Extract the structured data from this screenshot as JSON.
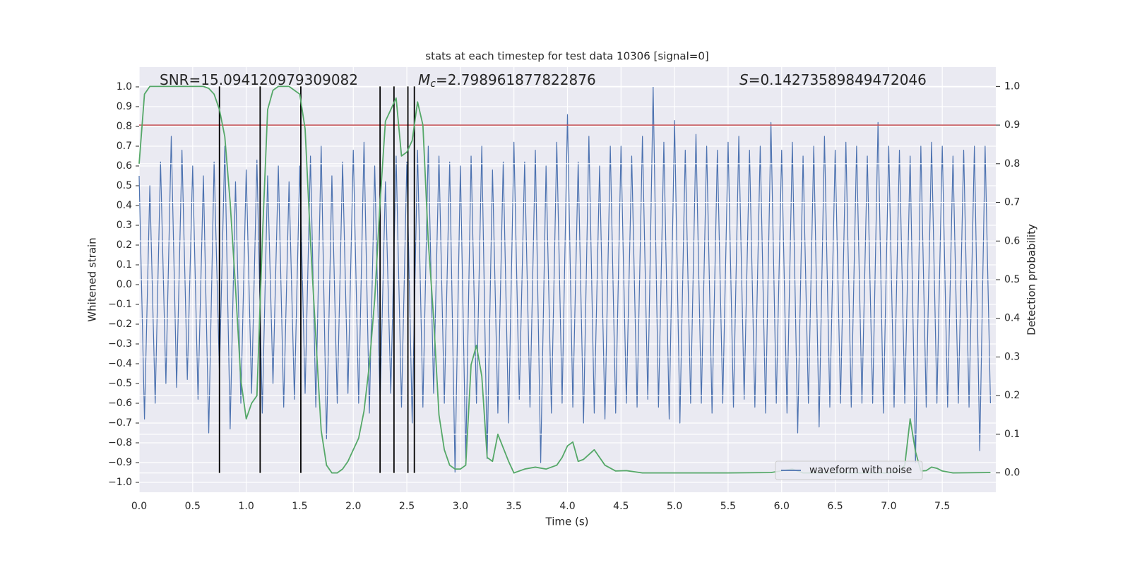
{
  "chart_data": {
    "type": "line",
    "title": "stats at each timestep for test data 10306 [signal=0]",
    "xlabel": "Time (s)",
    "ylabel": "Whitened strain",
    "y2label": "Detection probability",
    "xlim": [
      0,
      8
    ],
    "xticks": [
      {
        "value": 0,
        "label": "0.0"
      },
      0.5,
      {
        "value": 1,
        "label": "1.0"
      },
      1.5,
      {
        "value": 2,
        "label": "2.0"
      },
      2.5,
      {
        "value": 3,
        "label": "3.0"
      },
      3.5,
      {
        "value": 4,
        "label": "4.0"
      },
      4.5,
      {
        "value": 5,
        "label": "5.0"
      },
      5.5,
      {
        "value": 6,
        "label": "6.0"
      },
      6.5,
      {
        "value": 7,
        "label": "7.0"
      },
      7.5
    ],
    "ylim": [
      -1.05,
      1.1
    ],
    "yticks": [
      {
        "value": -1,
        "label": "−1.0"
      },
      {
        "value": -0.9,
        "label": "−0.9"
      },
      {
        "value": -0.8,
        "label": "−0.8"
      },
      {
        "value": -0.7,
        "label": "−0.7"
      },
      {
        "value": -0.6,
        "label": "−0.6"
      },
      {
        "value": -0.5,
        "label": "−0.5"
      },
      {
        "value": -0.4,
        "label": "−0.4"
      },
      {
        "value": -0.3,
        "label": "−0.3"
      },
      {
        "value": -0.2,
        "label": "−0.2"
      },
      {
        "value": -0.1,
        "label": "−0.1"
      },
      {
        "value": 0,
        "label": "0.0"
      },
      0.1,
      0.2,
      0.3,
      0.4,
      0.5,
      0.6,
      0.7,
      0.8,
      0.9,
      {
        "value": 1,
        "label": "1.0"
      }
    ],
    "y2lim": [
      -0.05,
      1.05
    ],
    "y2ticks": [
      {
        "value": 0,
        "label": "0.0"
      },
      0.1,
      0.2,
      0.3,
      0.4,
      0.5,
      0.6,
      0.7,
      0.8,
      0.9,
      {
        "value": 1,
        "label": "1.0"
      }
    ],
    "grid": true,
    "legend_loc": "lower right",
    "annotations": [
      {
        "text": "SNR=15.094120979309082"
      },
      {
        "symbol": "M",
        "subscript": "c",
        "text": "=2.798961877822876"
      },
      {
        "symbol": "S",
        "text": "=0.14273589849472046"
      }
    ],
    "series": [
      {
        "name": "waveform with noise",
        "color": "#4c72b0",
        "x": [
          0,
          0.05,
          0.1,
          0.15,
          0.2,
          0.25,
          0.3,
          0.35,
          0.4,
          0.45,
          0.5,
          0.55,
          0.6,
          0.65,
          0.7,
          0.75,
          0.8,
          0.85,
          0.9,
          0.95,
          1,
          1.05,
          1.1,
          1.15,
          1.2,
          1.25,
          1.3,
          1.35,
          1.4,
          1.45,
          1.5,
          1.55,
          1.6,
          1.65,
          1.7,
          1.75,
          1.8,
          1.85,
          1.9,
          1.95,
          2,
          2.05,
          2.1,
          2.15,
          2.2,
          2.25,
          2.3,
          2.35,
          2.4,
          2.45,
          2.5,
          2.55,
          2.6,
          2.65,
          2.7,
          2.75,
          2.8,
          2.85,
          2.9,
          2.95,
          3,
          3.05,
          3.1,
          3.15,
          3.2,
          3.25,
          3.3,
          3.35,
          3.4,
          3.45,
          3.5,
          3.55,
          3.6,
          3.65,
          3.7,
          3.75,
          3.8,
          3.85,
          3.9,
          3.95,
          4,
          4.05,
          4.1,
          4.15,
          4.2,
          4.25,
          4.3,
          4.35,
          4.4,
          4.45,
          4.5,
          4.55,
          4.6,
          4.65,
          4.7,
          4.75,
          4.8,
          4.85,
          4.9,
          4.95,
          5,
          5.05,
          5.1,
          5.15,
          5.2,
          5.25,
          5.3,
          5.35,
          5.4,
          5.45,
          5.5,
          5.55,
          5.6,
          5.65,
          5.7,
          5.75,
          5.8,
          5.85,
          5.9,
          5.95,
          6,
          6.05,
          6.1,
          6.15,
          6.2,
          6.25,
          6.3,
          6.35,
          6.4,
          6.45,
          6.5,
          6.55,
          6.6,
          6.65,
          6.7,
          6.75,
          6.8,
          6.85,
          6.9,
          6.95,
          7,
          7.05,
          7.1,
          7.15,
          7.2,
          7.25,
          7.3,
          7.35,
          7.4,
          7.45,
          7.5,
          7.55,
          7.6,
          7.65,
          7.7,
          7.75,
          7.8,
          7.85,
          7.9,
          7.95
        ],
        "values": [
          0.55,
          -0.68,
          0.5,
          -0.6,
          0.62,
          -0.5,
          0.75,
          -0.52,
          0.68,
          -0.48,
          0.6,
          -0.58,
          0.55,
          -0.75,
          0.62,
          -0.45,
          0.7,
          -0.73,
          0.52,
          -0.6,
          0.58,
          -0.55,
          0.63,
          -0.65,
          0.55,
          -0.5,
          0.6,
          -0.62,
          0.52,
          -0.58,
          0.6,
          -0.55,
          0.65,
          -0.62,
          0.7,
          -0.78,
          0.55,
          -0.6,
          0.62,
          -0.55,
          0.68,
          -0.6,
          0.72,
          -0.65,
          0.6,
          -0.6,
          0.52,
          -0.55,
          0.65,
          -0.62,
          0.62,
          -0.7,
          0.68,
          -0.62,
          0.7,
          -0.55,
          0.65,
          -0.6,
          0.62,
          -0.95,
          0.6,
          -0.88,
          0.65,
          -0.6,
          0.7,
          -0.88,
          0.58,
          -0.65,
          0.62,
          -0.7,
          0.72,
          -0.58,
          0.62,
          -0.62,
          0.68,
          -0.9,
          0.6,
          -0.65,
          0.72,
          -0.6,
          0.86,
          -0.62,
          0.62,
          -0.7,
          0.75,
          -0.65,
          0.6,
          -0.68,
          0.7,
          -0.65,
          0.7,
          -0.6,
          0.65,
          -0.62,
          0.75,
          -0.58,
          1.0,
          -0.62,
          0.72,
          -0.68,
          0.83,
          -0.7,
          0.68,
          -0.6,
          0.76,
          -0.6,
          0.7,
          -0.65,
          0.68,
          -0.6,
          0.72,
          -0.62,
          0.75,
          -0.58,
          0.68,
          -0.62,
          0.7,
          -0.65,
          0.82,
          -0.6,
          0.68,
          -0.65,
          0.72,
          -0.75,
          0.65,
          -0.6,
          0.7,
          -0.72,
          0.75,
          -0.62,
          0.68,
          -0.6,
          0.72,
          -0.62,
          0.7,
          -0.6,
          0.65,
          -0.6,
          0.82,
          -0.65,
          0.7,
          -0.62,
          0.68,
          -0.6,
          0.65,
          -0.9,
          0.7,
          -0.62,
          0.72,
          -0.6,
          0.7,
          -0.62,
          0.65,
          -0.6,
          0.68,
          -0.62,
          0.7,
          -0.84,
          0.7,
          -0.6
        ]
      },
      {
        "color": "#55a868",
        "axis": "y2",
        "x": [
          0,
          0.05,
          0.1,
          0.2,
          0.3,
          0.4,
          0.5,
          0.6,
          0.65,
          0.7,
          0.75,
          0.8,
          0.85,
          0.9,
          0.95,
          1,
          1.05,
          1.1,
          1.15,
          1.2,
          1.25,
          1.3,
          1.35,
          1.4,
          1.45,
          1.5,
          1.55,
          1.6,
          1.65,
          1.7,
          1.75,
          1.8,
          1.85,
          1.9,
          1.95,
          2,
          2.05,
          2.1,
          2.15,
          2.2,
          2.25,
          2.3,
          2.35,
          2.4,
          2.45,
          2.5,
          2.55,
          2.6,
          2.65,
          2.7,
          2.75,
          2.8,
          2.85,
          2.9,
          2.95,
          3,
          3.05,
          3.1,
          3.15,
          3.2,
          3.25,
          3.3,
          3.35,
          3.45,
          3.5,
          3.6,
          3.7,
          3.8,
          3.9,
          3.95,
          4,
          4.05,
          4.1,
          4.15,
          4.25,
          4.35,
          4.45,
          4.55,
          4.7,
          5,
          5.5,
          5.9,
          6.1,
          6.2,
          6.5,
          7,
          7.1,
          7.15,
          7.2,
          7.25,
          7.3,
          7.35,
          7.4,
          7.45,
          7.5,
          7.6,
          7.95
        ],
        "values": [
          0.8,
          0.98,
          1,
          1,
          1,
          1,
          1,
          1,
          0.995,
          0.98,
          0.94,
          0.87,
          0.7,
          0.48,
          0.24,
          0.14,
          0.18,
          0.2,
          0.6,
          0.94,
          0.99,
          1,
          1,
          1,
          0.99,
          0.98,
          0.89,
          0.6,
          0.35,
          0.11,
          0.02,
          0,
          0,
          0.01,
          0.03,
          0.06,
          0.09,
          0.16,
          0.28,
          0.45,
          0.7,
          0.91,
          0.94,
          0.97,
          0.82,
          0.83,
          0.86,
          0.96,
          0.9,
          0.6,
          0.4,
          0.15,
          0.06,
          0.02,
          0.01,
          0.01,
          0.02,
          0.28,
          0.33,
          0.25,
          0.04,
          0.03,
          0.1,
          0.03,
          0,
          0.01,
          0.015,
          0.01,
          0.02,
          0.04,
          0.07,
          0.08,
          0.03,
          0.035,
          0.06,
          0.02,
          0.005,
          0.006,
          0,
          0,
          0,
          0.001,
          0.01,
          0,
          0,
          0,
          0.005,
          0.02,
          0.14,
          0.055,
          0.005,
          0.006,
          0.015,
          0.012,
          0.005,
          0,
          0.001
        ]
      }
    ],
    "hlines": [
      {
        "value": 0.9,
        "axis": "y2",
        "color": "#c44e52"
      }
    ],
    "vlines": {
      "x": [
        0.75,
        1.13,
        1.51,
        2.25,
        2.38,
        2.51,
        2.57
      ],
      "y2range": [
        0,
        1
      ],
      "color": "#000000"
    }
  }
}
